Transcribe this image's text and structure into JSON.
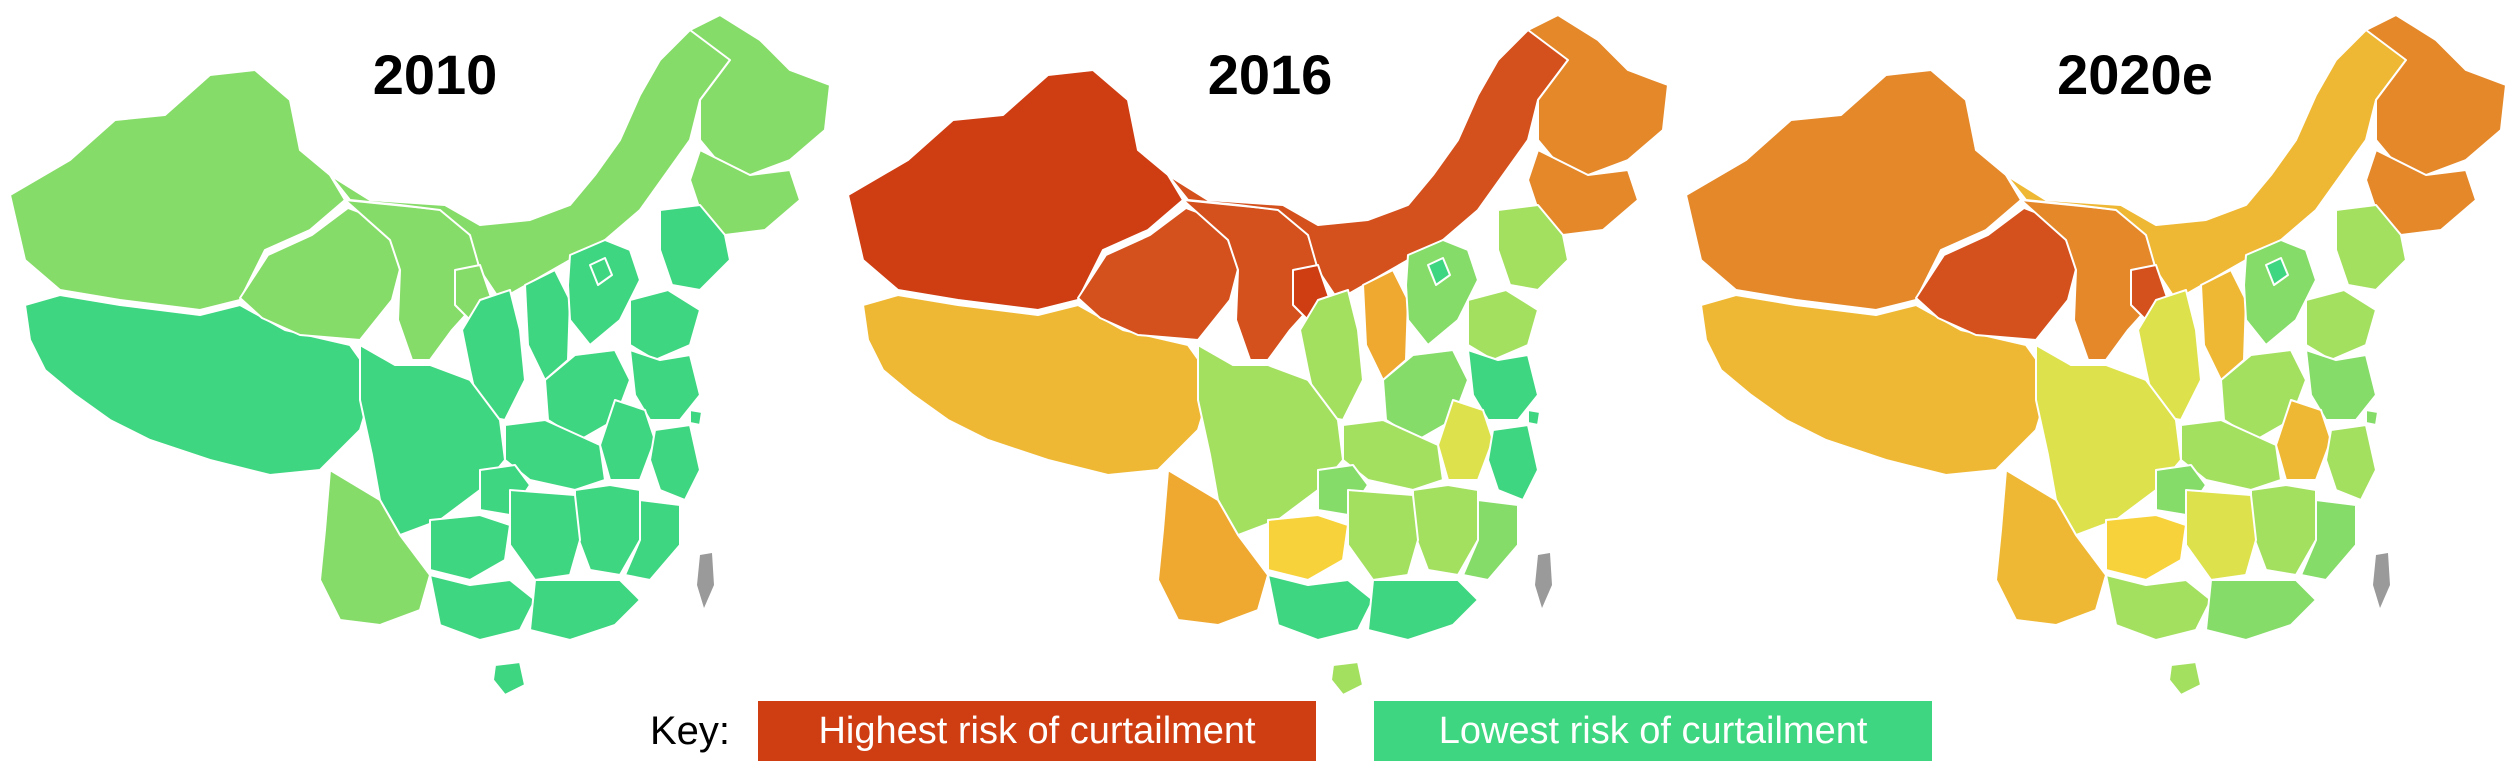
{
  "maps": [
    {
      "year": "2010"
    },
    {
      "year": "2016"
    },
    {
      "year": "2020e"
    }
  ],
  "legend": {
    "label": "Key:",
    "high": "Highest risk of curtailment",
    "low": "Lowest risk of curtailment",
    "high_color": "#cf3d12",
    "low_color": "#3ed680"
  },
  "colors": {
    "dark_red": "#cf3d12",
    "red_orange": "#d4501c",
    "orange": "#e4882a",
    "amber": "#efb834",
    "yellow": "#f8d23a",
    "yellow_green": "#dde24c",
    "light_green": "#a4e060",
    "green": "#86dc68",
    "emerald": "#3ed680",
    "taiwan_grey": "#9a9a9a"
  }
}
